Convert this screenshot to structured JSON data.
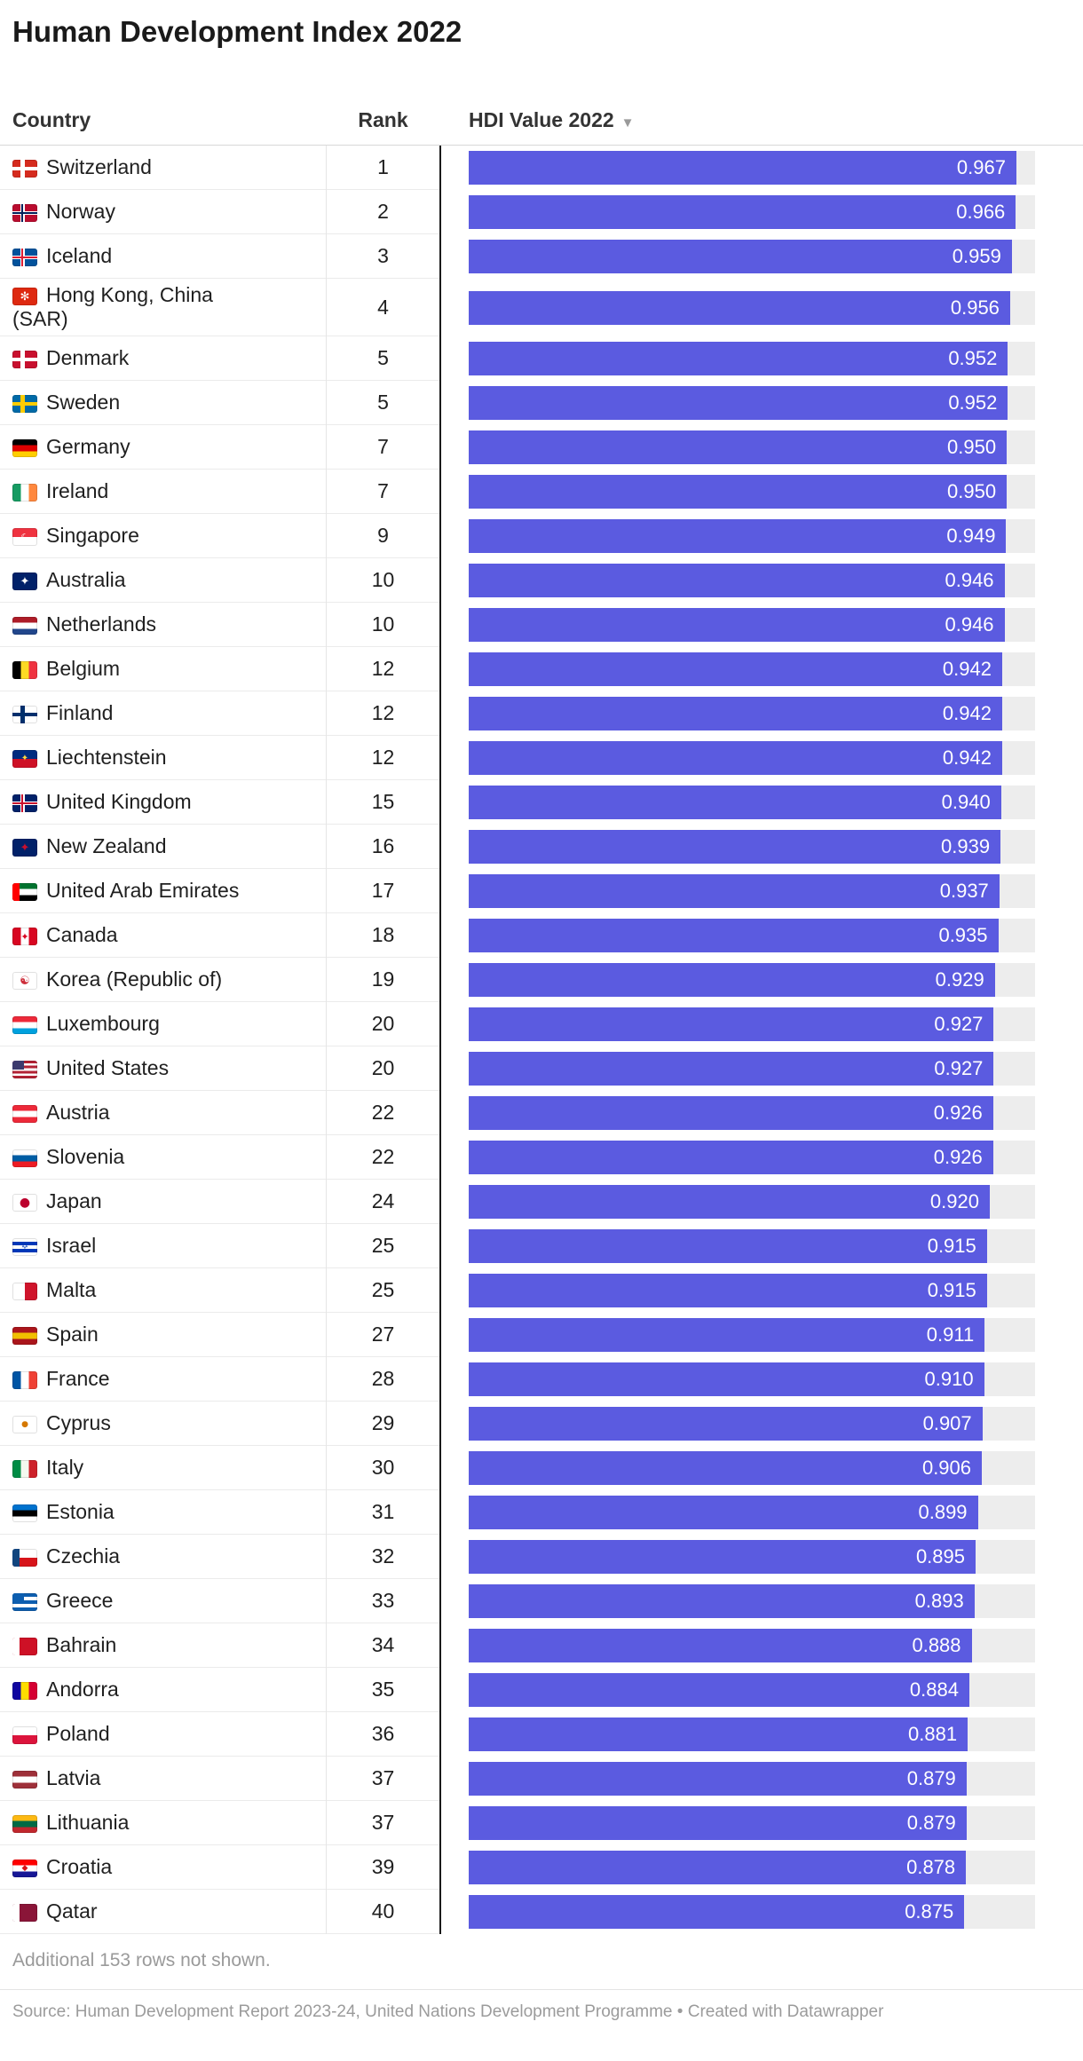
{
  "title": "Human Development Index 2022",
  "header": {
    "country": "Country",
    "rank": "Rank",
    "value": "HDI Value 2022",
    "sort_icon": "▼"
  },
  "footer": {
    "note": "Additional 153 rows not shown.",
    "source": "Source: Human Development Report 2023-24, United Nations Development Programme",
    "separator": " • ",
    "attribution": "Created with Datawrapper"
  },
  "style": {
    "bar_color": "#5B5BE0",
    "track_color": "#ededed"
  },
  "chart_data": {
    "type": "table",
    "title": "Human Development Index 2022",
    "columns": [
      "Country",
      "Rank",
      "HDI Value 2022"
    ],
    "sort": {
      "column": "HDI Value 2022",
      "direction": "desc"
    },
    "bar_axis": {
      "min": 0,
      "max": 1.0
    },
    "note": "Additional 153 rows not shown.",
    "rows": [
      {
        "country": "Switzerland",
        "rank": "1",
        "value": "0.967",
        "flag": {
          "dir": "h",
          "stripes": [
            "#d52b1e"
          ],
          "cross": "#ffffff"
        }
      },
      {
        "country": "Norway",
        "rank": "2",
        "value": "0.966",
        "flag": {
          "dir": "h",
          "stripes": [
            "#ba0c2f"
          ],
          "cross": "#ffffff",
          "cross2": "#00205b"
        }
      },
      {
        "country": "Iceland",
        "rank": "3",
        "value": "0.959",
        "flag": {
          "dir": "h",
          "stripes": [
            "#02529c"
          ],
          "cross": "#ffffff",
          "cross2": "#dc1e35"
        }
      },
      {
        "country": "Hong Kong, China (SAR)",
        "rank": "4",
        "value": "0.956",
        "flag": {
          "dir": "h",
          "stripes": [
            "#de2910"
          ],
          "emblem": "✻",
          "emblem_color": "#ffffff"
        }
      },
      {
        "country": "Denmark",
        "rank": "5",
        "value": "0.952",
        "flag": {
          "dir": "h",
          "stripes": [
            "#c8102e"
          ],
          "cross": "#ffffff"
        }
      },
      {
        "country": "Sweden",
        "rank": "5",
        "value": "0.952",
        "flag": {
          "dir": "h",
          "stripes": [
            "#006aa7"
          ],
          "cross": "#fecc02"
        }
      },
      {
        "country": "Germany",
        "rank": "7",
        "value": "0.950",
        "flag": {
          "dir": "h",
          "stripes": [
            "#000000",
            "#dd0000",
            "#ffce00"
          ]
        }
      },
      {
        "country": "Ireland",
        "rank": "7",
        "value": "0.950",
        "flag": {
          "dir": "v",
          "stripes": [
            "#169b62",
            "#ffffff",
            "#ff883e"
          ]
        }
      },
      {
        "country": "Singapore",
        "rank": "9",
        "value": "0.949",
        "flag": {
          "dir": "h",
          "stripes": [
            "#ef3340",
            "#ffffff"
          ],
          "emblem": "☾",
          "emblem_color": "#ffffff",
          "emblem_size": 11
        }
      },
      {
        "country": "Australia",
        "rank": "10",
        "value": "0.946",
        "flag": {
          "dir": "h",
          "stripes": [
            "#012169"
          ],
          "emblem": "✦",
          "emblem_color": "#ffffff"
        }
      },
      {
        "country": "Netherlands",
        "rank": "10",
        "value": "0.946",
        "flag": {
          "dir": "h",
          "stripes": [
            "#ae1c28",
            "#ffffff",
            "#21468b"
          ]
        }
      },
      {
        "country": "Belgium",
        "rank": "12",
        "value": "0.942",
        "flag": {
          "dir": "v",
          "stripes": [
            "#000000",
            "#fdda24",
            "#ef3340"
          ]
        }
      },
      {
        "country": "Finland",
        "rank": "12",
        "value": "0.942",
        "flag": {
          "dir": "h",
          "stripes": [
            "#ffffff"
          ],
          "cross": "#002f6c"
        }
      },
      {
        "country": "Liechtenstein",
        "rank": "12",
        "value": "0.942",
        "flag": {
          "dir": "h",
          "stripes": [
            "#002b7f",
            "#ce1126"
          ],
          "emblem": "✦",
          "emblem_color": "#ffd83d",
          "emblem_size": 10
        }
      },
      {
        "country": "United Kingdom",
        "rank": "15",
        "value": "0.940",
        "flag": {
          "dir": "h",
          "stripes": [
            "#012169"
          ],
          "cross": "#ffffff",
          "cross2": "#c8102e"
        }
      },
      {
        "country": "New Zealand",
        "rank": "16",
        "value": "0.939",
        "flag": {
          "dir": "h",
          "stripes": [
            "#012169"
          ],
          "emblem": "✦",
          "emblem_color": "#c8102e"
        }
      },
      {
        "country": "United Arab Emirates",
        "rank": "17",
        "value": "0.937",
        "flag": {
          "dir": "h",
          "stripes": [
            "#00732f",
            "#ffffff",
            "#000000"
          ],
          "band": "#ff0000"
        }
      },
      {
        "country": "Canada",
        "rank": "18",
        "value": "0.935",
        "flag": {
          "dir": "v",
          "stripes": [
            "#d80621",
            "#ffffff",
            "#d80621"
          ],
          "emblem": "✦",
          "emblem_color": "#d80621",
          "emblem_size": 11
        }
      },
      {
        "country": "Korea (Republic of)",
        "rank": "19",
        "value": "0.929",
        "flag": {
          "dir": "h",
          "stripes": [
            "#ffffff"
          ],
          "emblem": "☯",
          "emblem_color": "#cd2e3a"
        }
      },
      {
        "country": "Luxembourg",
        "rank": "20",
        "value": "0.927",
        "flag": {
          "dir": "h",
          "stripes": [
            "#ed2939",
            "#ffffff",
            "#00a1de"
          ]
        }
      },
      {
        "country": "United States",
        "rank": "20",
        "value": "0.927",
        "flag": {
          "dir": "h",
          "stripes": [
            "#b22234",
            "#ffffff",
            "#b22234",
            "#ffffff",
            "#b22234",
            "#ffffff",
            "#b22234"
          ],
          "canton": "#3c3b6e"
        }
      },
      {
        "country": "Austria",
        "rank": "22",
        "value": "0.926",
        "flag": {
          "dir": "h",
          "stripes": [
            "#ed2939",
            "#ffffff",
            "#ed2939"
          ]
        }
      },
      {
        "country": "Slovenia",
        "rank": "22",
        "value": "0.926",
        "flag": {
          "dir": "h",
          "stripes": [
            "#ffffff",
            "#005da4",
            "#ed1c24"
          ]
        }
      },
      {
        "country": "Japan",
        "rank": "24",
        "value": "0.920",
        "flag": {
          "dir": "h",
          "stripes": [
            "#ffffff"
          ],
          "emblem": "●",
          "emblem_color": "#bc002d",
          "emblem_size": 14
        }
      },
      {
        "country": "Israel",
        "rank": "25",
        "value": "0.915",
        "flag": {
          "dir": "h",
          "stripes": [
            "#ffffff",
            "#0038b8",
            "#ffffff",
            "#0038b8",
            "#ffffff"
          ],
          "emblem": "✡",
          "emblem_color": "#0038b8",
          "emblem_size": 10
        }
      },
      {
        "country": "Malta",
        "rank": "25",
        "value": "0.915",
        "flag": {
          "dir": "v",
          "stripes": [
            "#ffffff",
            "#cf142b"
          ]
        }
      },
      {
        "country": "Spain",
        "rank": "27",
        "value": "0.911",
        "flag": {
          "dir": "h",
          "stripes": [
            "#aa151b",
            "#f1bf00",
            "#aa151b"
          ]
        }
      },
      {
        "country": "France",
        "rank": "28",
        "value": "0.910",
        "flag": {
          "dir": "v",
          "stripes": [
            "#0055a4",
            "#ffffff",
            "#ef4135"
          ]
        }
      },
      {
        "country": "Cyprus",
        "rank": "29",
        "value": "0.907",
        "flag": {
          "dir": "h",
          "stripes": [
            "#ffffff"
          ],
          "emblem": "●",
          "emblem_color": "#d57800",
          "emblem_size": 9
        }
      },
      {
        "country": "Italy",
        "rank": "30",
        "value": "0.906",
        "flag": {
          "dir": "v",
          "stripes": [
            "#008c45",
            "#f4f9f0",
            "#cd212a"
          ]
        }
      },
      {
        "country": "Estonia",
        "rank": "31",
        "value": "0.899",
        "flag": {
          "dir": "h",
          "stripes": [
            "#0072ce",
            "#000000",
            "#ffffff"
          ]
        }
      },
      {
        "country": "Czechia",
        "rank": "32",
        "value": "0.895",
        "flag": {
          "dir": "h",
          "stripes": [
            "#ffffff",
            "#d7141a"
          ],
          "band": "#11457e"
        }
      },
      {
        "country": "Greece",
        "rank": "33",
        "value": "0.893",
        "flag": {
          "dir": "h",
          "stripes": [
            "#0d5eaf",
            "#ffffff",
            "#0d5eaf",
            "#ffffff",
            "#0d5eaf"
          ],
          "canton": "#0d5eaf"
        }
      },
      {
        "country": "Bahrain",
        "rank": "34",
        "value": "0.888",
        "flag": {
          "dir": "h",
          "stripes": [
            "#ce1126"
          ],
          "band": "#ffffff"
        }
      },
      {
        "country": "Andorra",
        "rank": "35",
        "value": "0.884",
        "flag": {
          "dir": "v",
          "stripes": [
            "#10069f",
            "#fedd00",
            "#d50032"
          ]
        }
      },
      {
        "country": "Poland",
        "rank": "36",
        "value": "0.881",
        "flag": {
          "dir": "h",
          "stripes": [
            "#ffffff",
            "#dc143c"
          ]
        }
      },
      {
        "country": "Latvia",
        "rank": "37",
        "value": "0.879",
        "flag": {
          "dir": "h",
          "stripes": [
            "#9e3039",
            "#ffffff",
            "#9e3039"
          ]
        }
      },
      {
        "country": "Lithuania",
        "rank": "37",
        "value": "0.879",
        "flag": {
          "dir": "h",
          "stripes": [
            "#fdb913",
            "#006a44",
            "#c1272d"
          ]
        }
      },
      {
        "country": "Croatia",
        "rank": "39",
        "value": "0.878",
        "flag": {
          "dir": "h",
          "stripes": [
            "#ff0000",
            "#ffffff",
            "#171796"
          ],
          "emblem": "◆",
          "emblem_color": "#d7141a",
          "emblem_size": 9
        }
      },
      {
        "country": "Qatar",
        "rank": "40",
        "value": "0.875",
        "flag": {
          "dir": "h",
          "stripes": [
            "#8a1538"
          ],
          "band": "#ffffff"
        }
      }
    ]
  }
}
